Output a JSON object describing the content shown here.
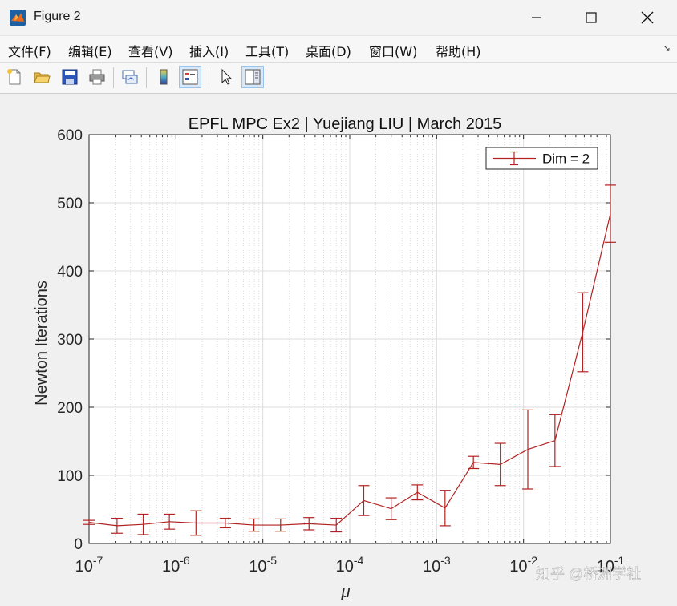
{
  "window": {
    "title": "Figure 2",
    "minimize_label": "minimize",
    "maximize_label": "maximize",
    "close_label": "close"
  },
  "menu": {
    "items": [
      "文件(F)",
      "编辑(E)",
      "查看(V)",
      "插入(I)",
      "工具(T)",
      "桌面(D)",
      "窗口(W)",
      "帮助(H)"
    ],
    "overflow_glyph": "↘"
  },
  "toolbar": {
    "icons": [
      "new-figure-icon",
      "open-file-icon",
      "save-icon",
      "print-icon",
      "link-plot-icon",
      "insert-colorbar-icon",
      "insert-legend-icon",
      "pointer-icon",
      "property-editor-icon"
    ]
  },
  "colors": {
    "series": "#b22222",
    "axes": "#262626"
  },
  "chart_data": {
    "type": "line",
    "title": "EPFL MPC Ex2 | Yuejiang LIU | March 2015",
    "xlabel": "μ",
    "ylabel": "Newton Iterations",
    "xscale": "log",
    "xlim": [
      1e-07,
      0.1
    ],
    "ylim": [
      0,
      600
    ],
    "grid": true,
    "minor_grid_x": true,
    "legend_position": "top-right",
    "x_ticks": [
      "1e-7",
      "1e-6",
      "1e-5",
      "1e-4",
      "1e-3",
      "1e-2",
      "1e-1"
    ],
    "y_ticks": [
      0,
      100,
      200,
      300,
      400,
      500,
      600
    ],
    "series": [
      {
        "name": "Dim = 2",
        "x": [
          1e-07,
          2.1e-07,
          4.2e-07,
          8.4e-07,
          1.7e-06,
          3.7e-06,
          7.9e-06,
          1.6e-05,
          3.4e-05,
          7e-05,
          0.000145,
          0.0003,
          0.0006,
          0.00125,
          0.00265,
          0.0054,
          0.0112,
          0.023,
          0.048,
          0.1
        ],
        "y": [
          31,
          26,
          28,
          32,
          30,
          30,
          27,
          27,
          29,
          27,
          63,
          51,
          75,
          52,
          119,
          116,
          138,
          151,
          310,
          484
        ],
        "err": [
          3,
          11,
          15,
          11,
          18,
          7,
          9,
          9,
          9,
          10,
          22,
          16,
          11,
          26,
          9,
          31,
          58,
          38,
          58,
          42
        ]
      }
    ]
  },
  "watermark": "知乎 @桥洲学社"
}
